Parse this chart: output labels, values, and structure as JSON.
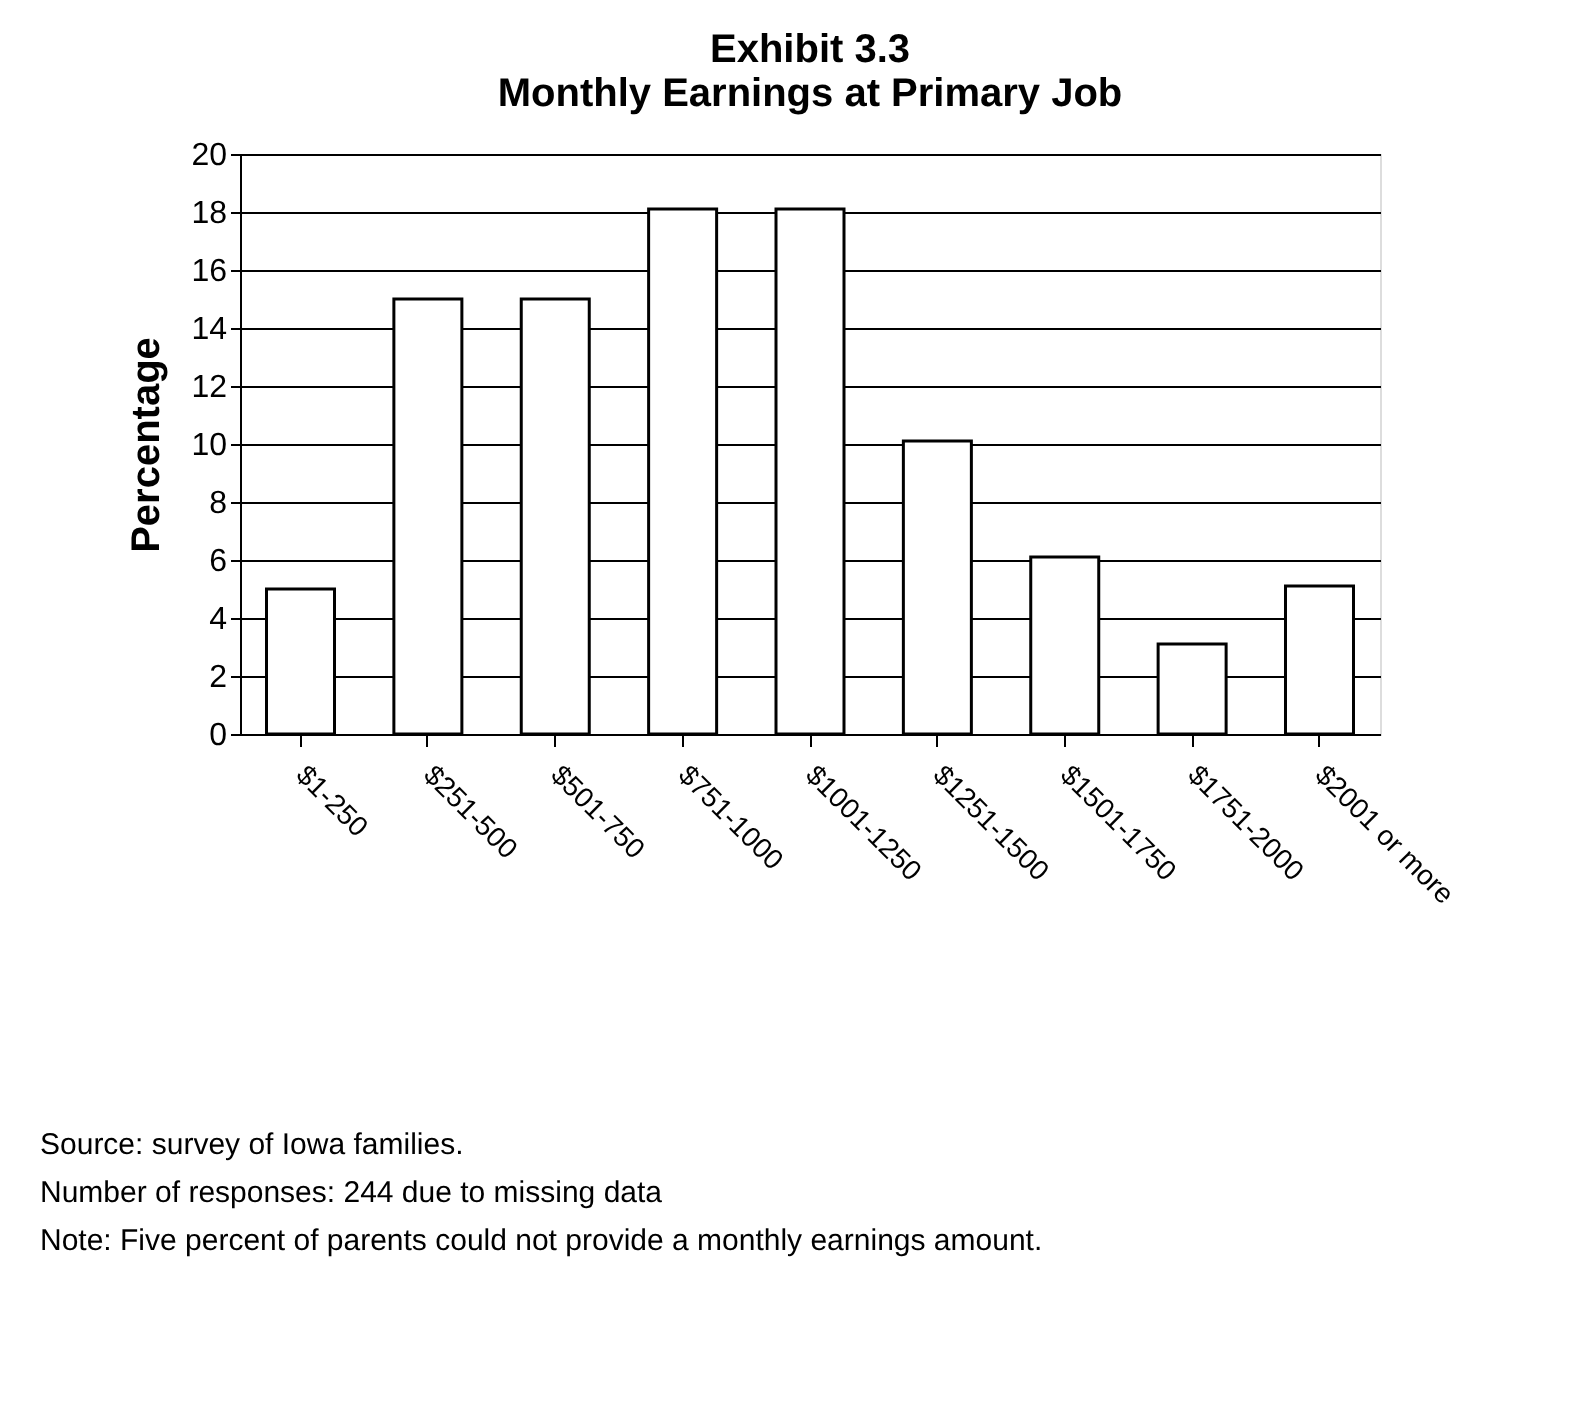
{
  "chart_data": {
    "type": "bar",
    "title": [
      "Exhibit 3.3",
      "Monthly Earnings at Primary Job"
    ],
    "ylabel": "Percentage",
    "categories": [
      "$1-250",
      "$251-500",
      "$501-750",
      "$751-1000",
      "$1001-1250",
      "$1251-1500",
      "$1501-1750",
      "$1751-2000",
      "$2001 or more"
    ],
    "values": [
      5,
      15,
      15,
      18.1,
      18.1,
      10.1,
      6.1,
      3.1,
      5.1
    ],
    "color": "#ffffff",
    "ylim": [
      0,
      20
    ],
    "yticks": [
      0,
      2,
      4,
      6,
      8,
      10,
      12,
      14,
      16,
      18,
      20
    ],
    "grid": "y",
    "annotations": [
      "Source: survey of Iowa families.",
      "Number of responses: 244 due to missing data",
      "Note: Five percent of parents could not provide a monthly earnings amount."
    ]
  }
}
